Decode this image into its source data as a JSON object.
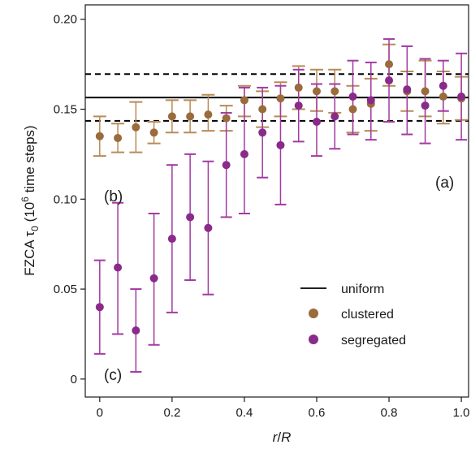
{
  "chart_data": {
    "type": "scatter",
    "xlabel": "r/R",
    "ylabel": "FZCA τ0 (10^6 time steps)",
    "ylabel_parts": {
      "prefix": "FZCA ",
      "tau": "τ",
      "sub": "0",
      "open": " (10",
      "sup": "6",
      "suffix": " time steps)"
    },
    "xlabel_parts": {
      "r": "r",
      "slash": "/",
      "R": "R"
    },
    "xlim": [
      -0.04,
      1.02
    ],
    "ylim": [
      -0.01,
      0.208
    ],
    "x_ticks": [
      0,
      0.2,
      0.4,
      0.6,
      0.8,
      1.0
    ],
    "x_tick_labels": [
      "0",
      "0.2",
      "0.4",
      "0.6",
      "0.8",
      "1.0"
    ],
    "y_ticks": [
      0,
      0.05,
      0.1,
      0.15,
      0.2
    ],
    "y_tick_labels": [
      "0",
      "0.05",
      "0.10",
      "0.15",
      "0.20"
    ],
    "reference_lines": {
      "uniform_mean": 0.1565,
      "uniform_band": [
        0.1435,
        0.1695
      ]
    },
    "annotations": [
      "(a)",
      "(b)",
      "(c)"
    ],
    "legend": {
      "position": "lower-right",
      "entries": [
        "uniform",
        "clustered",
        "segregated"
      ]
    },
    "colors": {
      "uniform": "#000000",
      "clustered": "#9a6b3c",
      "segregated": "#8a2a8a",
      "clustered_err": "#b98a56",
      "segregated_err": "#a23aa2"
    },
    "series": [
      {
        "name": "clustered",
        "x": [
          0,
          0.05,
          0.1,
          0.15,
          0.2,
          0.25,
          0.3,
          0.35,
          0.4,
          0.45,
          0.5,
          0.55,
          0.6,
          0.65,
          0.7,
          0.75,
          0.8,
          0.85,
          0.9,
          0.95,
          1.0
        ],
        "y": [
          0.135,
          0.134,
          0.14,
          0.137,
          0.146,
          0.146,
          0.147,
          0.145,
          0.155,
          0.15,
          0.156,
          0.162,
          0.16,
          0.16,
          0.15,
          0.153,
          0.175,
          0.16,
          0.16,
          0.157,
          0.156
        ],
        "err_low": [
          0.124,
          0.126,
          0.126,
          0.131,
          0.137,
          0.137,
          0.138,
          0.138,
          0.146,
          0.14,
          0.146,
          0.15,
          0.149,
          0.148,
          0.137,
          0.138,
          0.163,
          0.149,
          0.146,
          0.142,
          0.144
        ],
        "err_high": [
          0.146,
          0.142,
          0.154,
          0.143,
          0.155,
          0.155,
          0.158,
          0.152,
          0.163,
          0.16,
          0.165,
          0.174,
          0.172,
          0.172,
          0.163,
          0.167,
          0.186,
          0.171,
          0.177,
          0.171,
          0.168
        ]
      },
      {
        "name": "segregated",
        "x": [
          0,
          0.05,
          0.1,
          0.15,
          0.2,
          0.25,
          0.3,
          0.35,
          0.4,
          0.45,
          0.5,
          0.55,
          0.6,
          0.65,
          0.7,
          0.75,
          0.8,
          0.85,
          0.9,
          0.95,
          1.0
        ],
        "y": [
          0.04,
          0.062,
          0.027,
          0.056,
          0.078,
          0.09,
          0.084,
          0.119,
          0.125,
          0.137,
          0.13,
          0.152,
          0.143,
          0.146,
          0.157,
          0.155,
          0.166,
          0.161,
          0.152,
          0.163,
          0.157
        ],
        "err_low": [
          0.014,
          0.025,
          0.004,
          0.019,
          0.037,
          0.055,
          0.047,
          0.09,
          0.092,
          0.112,
          0.097,
          0.132,
          0.124,
          0.128,
          0.136,
          0.133,
          0.143,
          0.136,
          0.131,
          0.149,
          0.133
        ],
        "err_high": [
          0.066,
          0.098,
          0.05,
          0.092,
          0.119,
          0.125,
          0.121,
          0.148,
          0.162,
          0.162,
          0.163,
          0.172,
          0.164,
          0.164,
          0.177,
          0.176,
          0.189,
          0.185,
          0.178,
          0.177,
          0.181
        ]
      }
    ]
  }
}
